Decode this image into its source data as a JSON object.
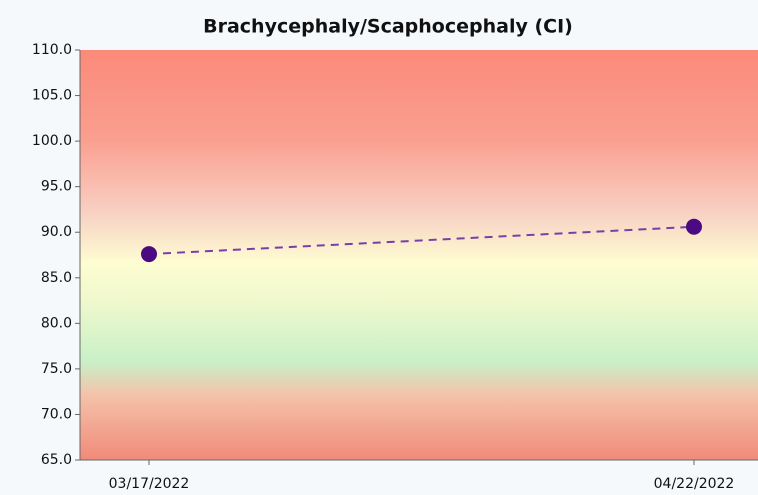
{
  "chart_data": {
    "type": "line",
    "title": "Brachycephaly/Scaphocephaly (CI)",
    "categories": [
      "03/17/2022",
      "04/22/2022"
    ],
    "series": [
      {
        "color": "#7a3ea8",
        "values": [
          87.6,
          90.6
        ]
      }
    ],
    "ylim": [
      65,
      110
    ],
    "yticks": [
      {
        "value": 65,
        "label": "65.0"
      },
      {
        "value": 70,
        "label": "70.0"
      },
      {
        "value": 75,
        "label": "75.0"
      },
      {
        "value": 80,
        "label": "80.0"
      },
      {
        "value": 85,
        "label": "85.0"
      },
      {
        "value": 90,
        "label": "90.0"
      },
      {
        "value": 95,
        "label": "95.0"
      },
      {
        "value": 100,
        "label": "100.0"
      },
      {
        "value": 105,
        "label": "105.0"
      },
      {
        "value": 110,
        "label": "110.0"
      }
    ]
  }
}
